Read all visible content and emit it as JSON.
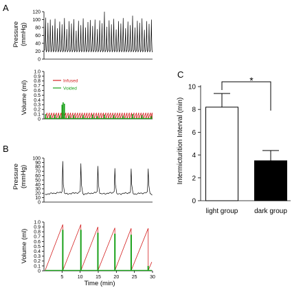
{
  "panel_letters": [
    "A",
    "B",
    "C"
  ],
  "colors": {
    "infused": "#d42020",
    "voided": "#18a018",
    "trace": "#000000",
    "light_bar": "#ffffff",
    "dark_bar": "#000000"
  },
  "chart_data": [
    {
      "id": "A_pressure",
      "type": "line",
      "ylabel_lines": [
        "Pressure",
        "(mmHg)"
      ],
      "ylim": [
        0,
        120
      ],
      "yticks": [
        0,
        20,
        40,
        60,
        80,
        100,
        120
      ],
      "xlim": [
        0,
        30
      ],
      "series": [
        {
          "peaks": [
            [
              0.45,
              105
            ],
            [
              1.1,
              92
            ],
            [
              1.75,
              100
            ],
            [
              2.4,
              85
            ],
            [
              3.05,
              102
            ],
            [
              3.7,
              78
            ],
            [
              4.35,
              95
            ],
            [
              5.0,
              88
            ],
            [
              5.65,
              104
            ],
            [
              6.3,
              76
            ],
            [
              6.95,
              96
            ],
            [
              7.6,
              90
            ],
            [
              8.25,
              101
            ],
            [
              8.9,
              72
            ],
            [
              9.55,
              97
            ],
            [
              10.2,
              86
            ],
            [
              10.85,
              103
            ],
            [
              11.5,
              80
            ],
            [
              12.15,
              94
            ],
            [
              12.8,
              99
            ],
            [
              13.45,
              84
            ],
            [
              14.1,
              100
            ],
            [
              14.75,
              76
            ],
            [
              15.4,
              98
            ],
            [
              16.05,
              91
            ],
            [
              16.7,
              120
            ],
            [
              17.35,
              82
            ],
            [
              18.0,
              98
            ],
            [
              18.65,
              88
            ],
            [
              19.3,
              102
            ],
            [
              19.95,
              75
            ],
            [
              20.6,
              96
            ],
            [
              21.25,
              90
            ],
            [
              21.9,
              104
            ],
            [
              22.55,
              78
            ],
            [
              23.2,
              95
            ],
            [
              23.85,
              86
            ],
            [
              24.5,
              110
            ],
            [
              25.15,
              80
            ],
            [
              25.8,
              97
            ],
            [
              26.45,
              92
            ],
            [
              27.1,
              103
            ],
            [
              27.75,
              74
            ],
            [
              28.4,
              96
            ],
            [
              29.05,
              89
            ],
            [
              29.7,
              100
            ]
          ],
          "baseline": 18
        }
      ]
    },
    {
      "id": "A_volume",
      "type": "line",
      "ylabel": "Volume (ml)",
      "ylim": [
        0,
        1.0
      ],
      "yticks": [
        "0",
        "0.1",
        "0.2",
        "0.3",
        "0.4",
        "0.5",
        "0.6",
        "0.7",
        "0.8",
        "0.9",
        "1.0"
      ],
      "xlim": [
        0,
        30
      ],
      "legend": [
        {
          "label": "Infused",
          "color_key": "infused"
        },
        {
          "label": "Voided",
          "color_key": "voided"
        }
      ],
      "infused_cycle_min": 0.65,
      "infused_peak": 0.13,
      "voided_spikes": [
        [
          0.45,
          0.1
        ],
        [
          1.75,
          0.08
        ],
        [
          3.05,
          0.09
        ],
        [
          4.35,
          0.07
        ],
        [
          5.0,
          0.3
        ],
        [
          5.3,
          0.35
        ],
        [
          5.65,
          0.32
        ],
        [
          6.95,
          0.07
        ],
        [
          8.25,
          0.08
        ],
        [
          10.85,
          0.08
        ],
        [
          13.45,
          0.09
        ],
        [
          14.75,
          0.06
        ],
        [
          16.7,
          0.09
        ],
        [
          19.3,
          0.08
        ],
        [
          21.9,
          0.07
        ],
        [
          24.5,
          0.1
        ],
        [
          27.1,
          0.08
        ],
        [
          29.7,
          0.06
        ]
      ]
    },
    {
      "id": "B_pressure",
      "type": "line",
      "ylabel_lines": [
        "Pressure",
        "(mmHg)"
      ],
      "ylim": [
        0,
        100
      ],
      "yticks": [
        0,
        10,
        20,
        30,
        40,
        50,
        60,
        70,
        80,
        90,
        100
      ],
      "xlim": [
        0,
        30
      ],
      "series": [
        {
          "peaks": [
            [
              5.2,
              93
            ],
            [
              10.2,
              88
            ],
            [
              14.9,
              82
            ],
            [
              19.6,
              77
            ],
            [
              24.1,
              76
            ],
            [
              28.8,
              76
            ]
          ],
          "baseline": 18
        }
      ]
    },
    {
      "id": "B_volume",
      "type": "line",
      "ylabel": "Volume (ml)",
      "xlabel": "Time (min)",
      "ylim": [
        0,
        1.0
      ],
      "yticks": [
        "0",
        "0.1",
        "0.2",
        "0.3",
        "0.4",
        "0.5",
        "0.6",
        "0.7",
        "0.8",
        "0.9",
        "1.0"
      ],
      "xlim": [
        0,
        30
      ],
      "xticks": [
        5,
        10,
        15,
        20,
        25,
        30
      ],
      "infused_ramps": [
        [
          0.3,
          5.2,
          0.95
        ],
        [
          5.2,
          10.2,
          0.95
        ],
        [
          10.2,
          14.9,
          0.9
        ],
        [
          14.9,
          19.6,
          0.88
        ],
        [
          19.6,
          24.1,
          0.87
        ],
        [
          24.1,
          28.8,
          0.87
        ]
      ],
      "voided_spikes": [
        [
          5.2,
          0.84
        ],
        [
          10.2,
          0.84
        ],
        [
          14.9,
          0.78
        ],
        [
          19.6,
          0.76
        ],
        [
          24.1,
          0.74
        ],
        [
          28.8,
          0.1
        ]
      ]
    },
    {
      "id": "C_bar",
      "type": "bar",
      "categories": [
        "light group",
        "dark group"
      ],
      "values": [
        8.2,
        3.5
      ],
      "errors": [
        1.2,
        0.9
      ],
      "ylabel": "Intermicturition Interval (min)",
      "ylim": [
        0,
        10
      ],
      "yticks": [
        0,
        2,
        4,
        6,
        8,
        10
      ],
      "significance": "*"
    }
  ]
}
